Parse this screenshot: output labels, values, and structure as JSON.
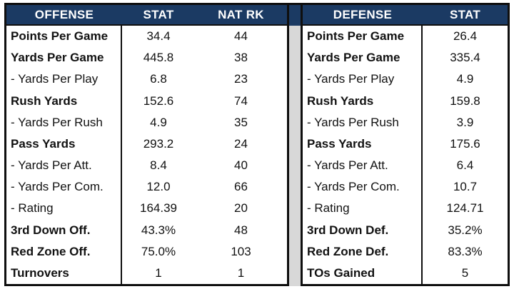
{
  "colors": {
    "header_bg": "#1b3a63",
    "header_text": "#ffffff",
    "border": "#0f0f0f",
    "gap_bg": "#d8d8d8",
    "body_bg": "#ffffff",
    "text": "#111111"
  },
  "chart_data": [
    {
      "type": "table",
      "name": "offense",
      "columns": [
        "OFFENSE",
        "STAT",
        "NAT RK"
      ],
      "rows": [
        {
          "label": "Points Per Game",
          "bold": true,
          "stat": "34.4",
          "nat_rk": "44"
        },
        {
          "label": "Yards Per Game",
          "bold": true,
          "stat": "445.8",
          "nat_rk": "38"
        },
        {
          "label": "- Yards Per Play",
          "bold": false,
          "stat": "6.8",
          "nat_rk": "23"
        },
        {
          "label": "Rush Yards",
          "bold": true,
          "stat": "152.6",
          "nat_rk": "74"
        },
        {
          "label": "- Yards Per Rush",
          "bold": false,
          "stat": "4.9",
          "nat_rk": "35"
        },
        {
          "label": "Pass Yards",
          "bold": true,
          "stat": "293.2",
          "nat_rk": "24"
        },
        {
          "label": "- Yards Per Att.",
          "bold": false,
          "stat": "8.4",
          "nat_rk": "40"
        },
        {
          "label": "- Yards Per Com.",
          "bold": false,
          "stat": "12.0",
          "nat_rk": "66"
        },
        {
          "label": "- Rating",
          "bold": false,
          "stat": "164.39",
          "nat_rk": "20"
        },
        {
          "label": "3rd Down Off.",
          "bold": true,
          "stat": "43.3%",
          "nat_rk": "48"
        },
        {
          "label": "Red Zone Off.",
          "bold": true,
          "stat": "75.0%",
          "nat_rk": "103"
        },
        {
          "label": "Turnovers",
          "bold": true,
          "stat": "1",
          "nat_rk": "1"
        }
      ]
    },
    {
      "type": "table",
      "name": "defense",
      "columns": [
        "DEFENSE",
        "STAT"
      ],
      "rows": [
        {
          "label": "Points Per Game",
          "bold": true,
          "stat": "26.4"
        },
        {
          "label": "Yards Per Game",
          "bold": true,
          "stat": "335.4"
        },
        {
          "label": "- Yards Per Play",
          "bold": false,
          "stat": "4.9"
        },
        {
          "label": "Rush Yards",
          "bold": true,
          "stat": "159.8"
        },
        {
          "label": "- Yards Per Rush",
          "bold": false,
          "stat": "3.9"
        },
        {
          "label": "Pass Yards",
          "bold": true,
          "stat": "175.6"
        },
        {
          "label": "- Yards Per Att.",
          "bold": false,
          "stat": "6.4"
        },
        {
          "label": "- Yards Per Com.",
          "bold": false,
          "stat": "10.7"
        },
        {
          "label": "- Rating",
          "bold": false,
          "stat": "124.71"
        },
        {
          "label": "3rd Down Def.",
          "bold": true,
          "stat": "35.2%"
        },
        {
          "label": "Red Zone Def.",
          "bold": true,
          "stat": "83.3%"
        },
        {
          "label": "TOs Gained",
          "bold": true,
          "stat": "5"
        }
      ]
    }
  ]
}
